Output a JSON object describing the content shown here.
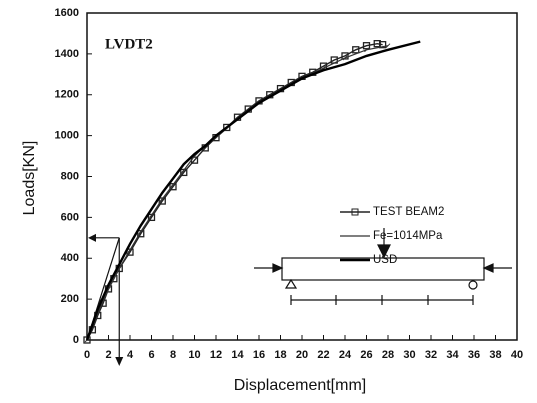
{
  "chart_data": {
    "type": "line",
    "xlabel": "Displacement[mm]",
    "ylabel": "Loads[KN]",
    "annotation": "LVDT2",
    "xlim": [
      0,
      40
    ],
    "xticks": [
      0,
      2,
      4,
      6,
      8,
      10,
      12,
      14,
      16,
      18,
      20,
      22,
      24,
      26,
      28,
      30,
      32,
      34,
      36,
      38,
      40
    ],
    "ylim": [
      0,
      1600
    ],
    "yticks": [
      0,
      200,
      400,
      600,
      800,
      1000,
      1200,
      1400,
      1600
    ],
    "reference_point": {
      "x": 3,
      "y": 500
    },
    "series": [
      {
        "name": "TEST BEAM2",
        "color": "#222222",
        "marker": "square",
        "x": [
          0,
          0.5,
          1,
          1.5,
          2,
          2.5,
          3,
          4,
          5,
          6,
          7,
          8,
          9,
          10,
          11,
          12,
          13,
          14,
          15,
          16,
          17,
          18,
          19,
          20,
          21,
          22,
          23,
          24,
          25,
          26,
          27,
          27.5
        ],
        "values": [
          0,
          50,
          120,
          180,
          250,
          300,
          350,
          430,
          520,
          600,
          680,
          750,
          820,
          880,
          940,
          990,
          1040,
          1090,
          1130,
          1170,
          1200,
          1230,
          1260,
          1290,
          1310,
          1340,
          1370,
          1390,
          1420,
          1440,
          1450,
          1445
        ]
      },
      {
        "name": "Fe=1014MPa",
        "color": "#333333",
        "marker": "tick",
        "x": [
          0,
          1,
          2,
          3,
          4,
          5,
          6,
          7,
          8,
          9,
          10,
          11,
          12,
          14,
          16,
          18,
          20,
          22,
          24,
          26,
          28
        ],
        "values": [
          0,
          130,
          250,
          350,
          440,
          530,
          610,
          690,
          760,
          830,
          900,
          950,
          990,
          1080,
          1160,
          1220,
          1280,
          1330,
          1380,
          1420,
          1440
        ]
      },
      {
        "name": "USD",
        "color": "#000000",
        "marker": "none",
        "x": [
          0,
          1,
          2,
          3,
          4,
          5,
          6,
          7,
          8,
          9,
          10,
          11,
          12,
          14,
          16,
          18,
          20,
          22,
          24,
          26,
          28,
          31
        ],
        "values": [
          0,
          150,
          270,
          370,
          470,
          560,
          640,
          720,
          790,
          860,
          910,
          950,
          1000,
          1080,
          1160,
          1220,
          1280,
          1320,
          1350,
          1390,
          1420,
          1460
        ]
      }
    ]
  }
}
